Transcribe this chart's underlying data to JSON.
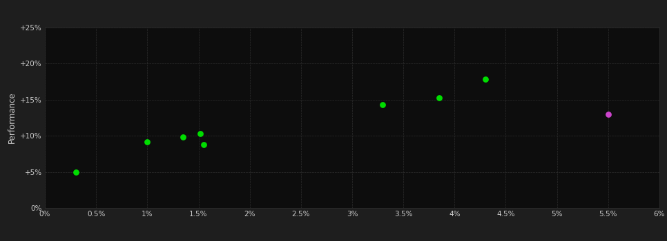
{
  "green_points": [
    [
      0.3,
      5.0
    ],
    [
      1.0,
      9.2
    ],
    [
      1.35,
      9.8
    ],
    [
      1.52,
      10.3
    ],
    [
      1.55,
      8.8
    ],
    [
      3.3,
      14.3
    ],
    [
      3.85,
      15.3
    ],
    [
      4.3,
      17.8
    ]
  ],
  "magenta_points": [
    [
      5.5,
      13.0
    ]
  ],
  "x_ticks": [
    0,
    0.5,
    1.0,
    1.5,
    2.0,
    2.5,
    3.0,
    3.5,
    4.0,
    4.5,
    5.0,
    5.5,
    6.0
  ],
  "x_tick_labels": [
    "0%",
    "0.5%",
    "1%",
    "1.5%",
    "2%",
    "2.5%",
    "3%",
    "3.5%",
    "4%",
    "4.5%",
    "5%",
    "5.5%",
    "6%"
  ],
  "y_ticks": [
    0,
    5,
    10,
    15,
    20,
    25
  ],
  "y_tick_labels": [
    "0%",
    "+5%",
    "+10%",
    "+15%",
    "+20%",
    "+25%"
  ],
  "xlim": [
    0,
    6.0
  ],
  "ylim": [
    0,
    25
  ],
  "ylabel": "Performance",
  "background_color": "#1e1e1e",
  "plot_bg_color": "#0d0d0d",
  "grid_color": "#2e2e2e",
  "green_color": "#00dd00",
  "magenta_color": "#cc44cc",
  "tick_color": "#cccccc",
  "label_color": "#cccccc",
  "marker_size": 40
}
